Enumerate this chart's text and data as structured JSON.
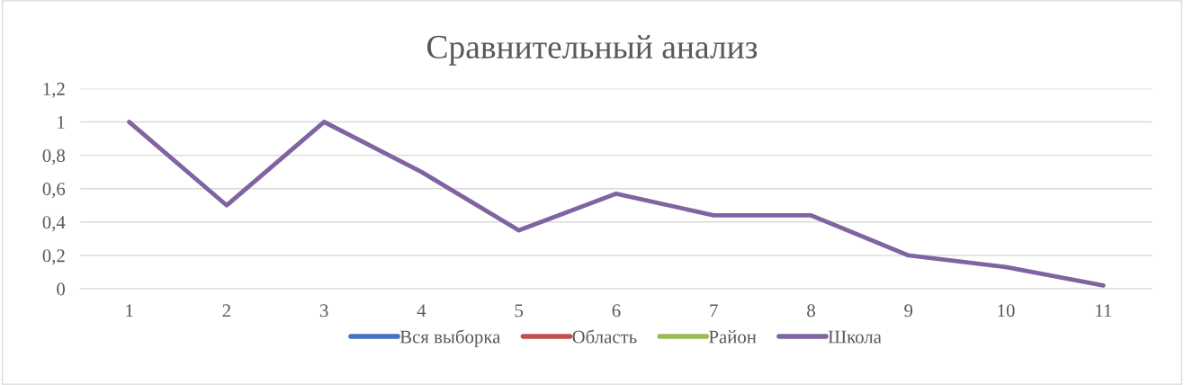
{
  "chart_data": {
    "type": "line",
    "title": "Сравнительный анализ",
    "categories": [
      "1",
      "2",
      "3",
      "4",
      "5",
      "6",
      "7",
      "8",
      "9",
      "10",
      "11"
    ],
    "series": [
      {
        "name": "Вся выборка",
        "color": "#4472c4",
        "values": [
          null,
          null,
          null,
          null,
          null,
          null,
          null,
          null,
          null,
          null,
          null
        ]
      },
      {
        "name": "Область",
        "color": "#c0504d",
        "values": [
          null,
          null,
          null,
          null,
          null,
          null,
          null,
          null,
          null,
          null,
          null
        ]
      },
      {
        "name": "Район",
        "color": "#9bbb59",
        "values": [
          null,
          null,
          null,
          null,
          null,
          null,
          null,
          null,
          null,
          null,
          null
        ]
      },
      {
        "name": "Школа",
        "color": "#8064a2",
        "values": [
          1,
          0.5,
          1,
          0.7,
          0.35,
          0.57,
          0.44,
          0.44,
          0.2,
          0.13,
          0.02
        ]
      }
    ],
    "ylim": [
      0,
      1.2
    ],
    "yticks": [
      {
        "value": 0,
        "label": "0"
      },
      {
        "value": 0.2,
        "label": "0,2"
      },
      {
        "value": 0.4,
        "label": "0,4"
      },
      {
        "value": 0.6,
        "label": "0,6"
      },
      {
        "value": 0.8,
        "label": "0,8"
      },
      {
        "value": 1,
        "label": "1"
      },
      {
        "value": 1.2,
        "label": "1,2"
      }
    ],
    "grid": "y",
    "legend": "bottom",
    "marker": "none",
    "line_style": "solid"
  }
}
